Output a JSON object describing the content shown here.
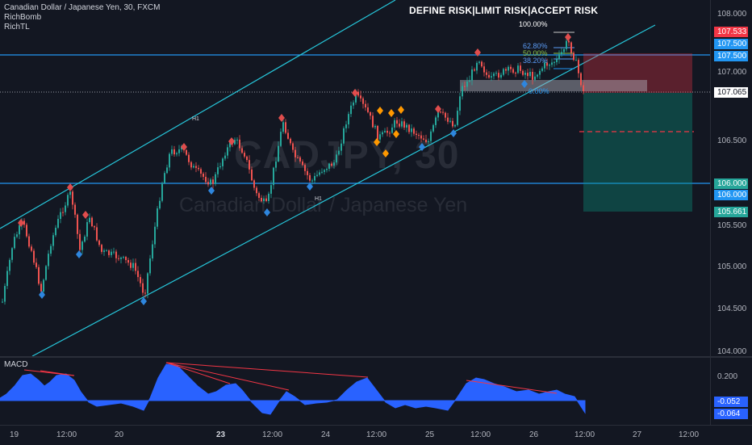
{
  "header": {
    "symbol_line": "Canadian Dollar / Japanese Yen, 30, FXCM",
    "indicators": [
      "RichBomb",
      "RichTL"
    ],
    "banner": "DEFINE RISK|LIMIT RISK|ACCEPT RISK"
  },
  "watermark": {
    "ticker": "CADJPY, 30",
    "name": "Canadian Dollar  /  Japanese Yen"
  },
  "fib_labels": {
    "top": "100.00%",
    "l1": "62.80%",
    "l2": "50.00%",
    "l3": "38.20%",
    "l4": "0.00%"
  },
  "channel_labels": {
    "upper": "H1",
    "lower": "H1"
  },
  "price_axis": {
    "ticks": [
      "108.000",
      "107.000",
      "106.500",
      "105.500",
      "105.000",
      "104.500",
      "104.000"
    ],
    "labels": {
      "stop": "107.533",
      "hline_top_a": "107.500",
      "hline_top_b": "107.500",
      "current": "107.065",
      "hline_low_a": "106.000",
      "hline_low_b": "106.000",
      "target": "105.661"
    }
  },
  "macd": {
    "title": "MACD",
    "ticks": [
      "0.200"
    ],
    "values": [
      "-0.052",
      "-0.064"
    ]
  },
  "time_axis": {
    "ticks": [
      {
        "label": "19",
        "bold": false
      },
      {
        "label": "12:00",
        "bold": false
      },
      {
        "label": "20",
        "bold": false
      },
      {
        "label": "23",
        "bold": true
      },
      {
        "label": "12:00",
        "bold": false
      },
      {
        "label": "24",
        "bold": false
      },
      {
        "label": "12:00",
        "bold": false
      },
      {
        "label": "25",
        "bold": false
      },
      {
        "label": "12:00",
        "bold": false
      },
      {
        "label": "26",
        "bold": false
      },
      {
        "label": "12:00",
        "bold": false
      },
      {
        "label": "27",
        "bold": false
      },
      {
        "label": "12:00",
        "bold": false
      }
    ]
  },
  "colors": {
    "background": "#131722",
    "bull": "#26a69a",
    "bear": "#ef5350",
    "channel": "#26c6da",
    "hline": "#2196f3",
    "stop_zone": "rgba(242,54,69,0.32)",
    "target_zone": "rgba(8,153,129,0.35)",
    "macd_fill": "#2962ff",
    "divergence": "#f23645",
    "diamond_red": "#e04d4d",
    "diamond_blue": "#2e86de",
    "diamond_orange": "#ff9800"
  }
}
